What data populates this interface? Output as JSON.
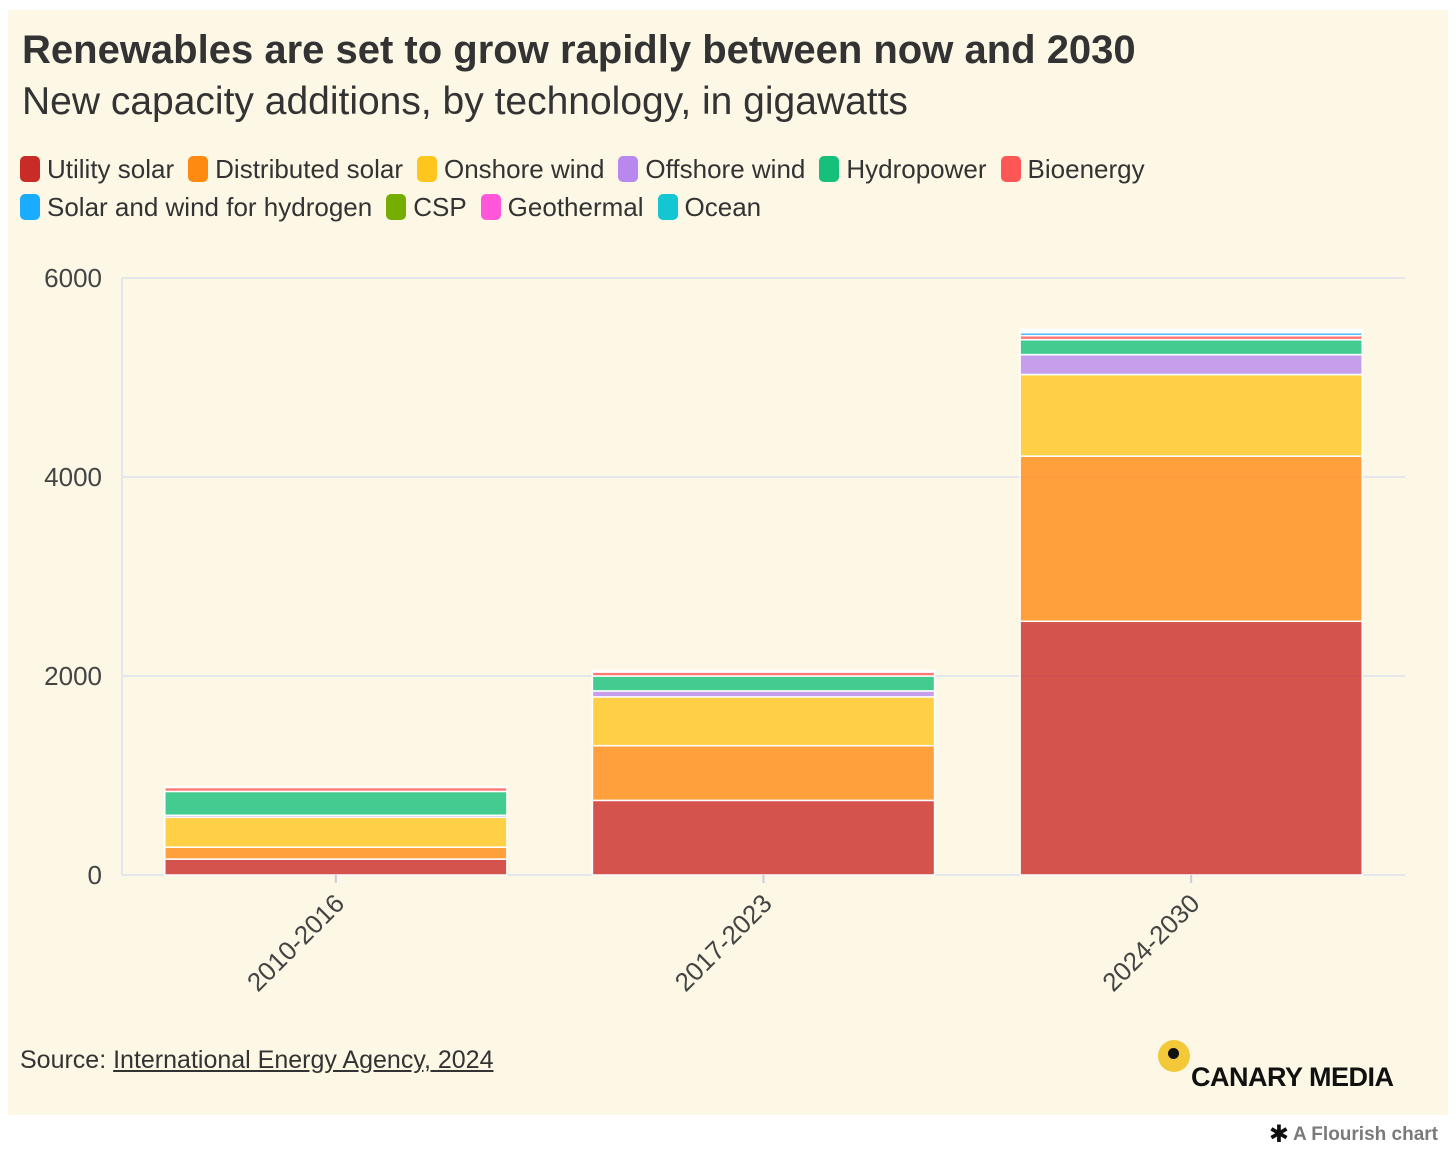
{
  "header": {
    "title": "Renewables are set to grow rapidly between now and 2030",
    "subtitle": "New capacity additions, by technology, in gigawatts"
  },
  "footer": {
    "source_prefix": "Source: ",
    "source_link": "International Energy Agency, 2024",
    "logo_text": "CANARY MEDIA",
    "flourish_label": "A Flourish chart"
  },
  "colors": {
    "background": "#fdf8e6",
    "grid": "#e4e6ec"
  },
  "chart_data": {
    "type": "bar",
    "stacked": true,
    "categories": [
      "2010-2016",
      "2017-2023",
      "2024-2030"
    ],
    "ylim": [
      0,
      6000
    ],
    "yticks": [
      0,
      2000,
      4000,
      6000
    ],
    "grid": true,
    "legend_position": "top",
    "series": [
      {
        "name": "Utility solar",
        "color": "#c92b27",
        "values": [
          160,
          750,
          2550
        ]
      },
      {
        "name": "Distributed solar",
        "color": "#ff8a12",
        "values": [
          120,
          550,
          1660
        ]
      },
      {
        "name": "Onshore wind",
        "color": "#ffc61e",
        "values": [
          300,
          490,
          820
        ]
      },
      {
        "name": "Offshore wind",
        "color": "#b888ee",
        "values": [
          20,
          60,
          200
        ]
      },
      {
        "name": "Hydropower",
        "color": "#15c07a",
        "values": [
          240,
          150,
          150
        ]
      },
      {
        "name": "Bioenergy",
        "color": "#ff5656",
        "values": [
          40,
          40,
          40
        ]
      },
      {
        "name": "Solar and wind for hydrogen",
        "color": "#1aadff",
        "values": [
          0,
          0,
          30
        ]
      },
      {
        "name": "CSP",
        "color": "#75ad00",
        "values": [
          5,
          5,
          5
        ]
      },
      {
        "name": "Geothermal",
        "color": "#ff56da",
        "values": [
          5,
          10,
          15
        ]
      },
      {
        "name": "Ocean",
        "color": "#14c6d2",
        "values": [
          0,
          0,
          15
        ]
      }
    ]
  }
}
